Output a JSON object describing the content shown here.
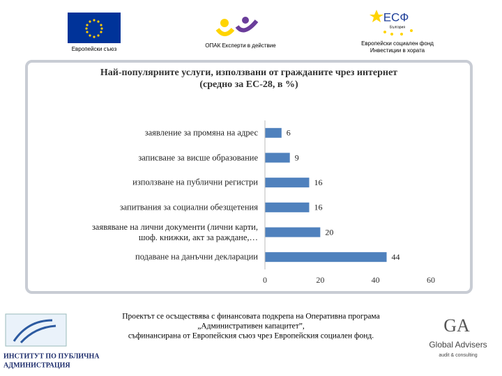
{
  "header": {
    "eu": "Европейски съюз",
    "opak": "ОПАК Експерти в действие",
    "esf_mark": "ЕСФ",
    "esf_country": "България",
    "esf_line1": "Европейски социален фонд",
    "esf_line2": "Инвестиции в хората"
  },
  "chart_data": {
    "type": "hbar",
    "title": "Най-популярните услуги, използвани от гражданите чрез интернет",
    "subtitle": "(средно за ЕС-28, в %)",
    "categories": [
      "заявление за промяна на адрес",
      "записване за висше образование",
      "използване на публични регистри",
      "запитвания за социални обезщетения",
      "заявяване на лични документи (лични карти, шоф. книжки, акт за раждане,…",
      "подаване на данъчни декларации"
    ],
    "values": [
      6,
      9,
      16,
      16,
      20,
      44
    ],
    "color": "#4f81bd",
    "xlim": [
      0,
      60
    ],
    "xticks": [
      0,
      20,
      40,
      60
    ]
  },
  "footer": {
    "line1": "Проектът се осъществява с финансовата подкрепа на Оперативна програма",
    "line2": "„Административен капацитет”,",
    "line3": "съфинансирана от Европейския съюз чрез Европейския социален фонд.",
    "ipa1": "ИНСТИТУТ ПО ПУБЛИЧНА",
    "ipa2": "АДМИНИСТРАЦИЯ",
    "ga_mark": "GA",
    "ga_name": "Global Advisers",
    "ga_sub": "audit & consulting"
  }
}
